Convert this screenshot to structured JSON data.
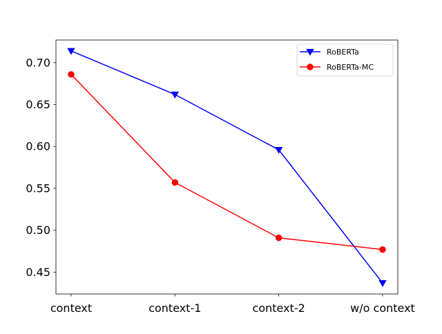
{
  "chart_data": {
    "type": "line",
    "title": "",
    "xlabel": "",
    "ylabel": "",
    "categories": [
      "context",
      "context-1",
      "context-2",
      "w/o context"
    ],
    "series": [
      {
        "name": "RoBERTa",
        "color": "#0000ff",
        "marker": "triangle-down",
        "values": [
          0.714,
          0.662,
          0.596,
          0.437
        ]
      },
      {
        "name": "RoBERTa-MC",
        "color": "#ff0000",
        "marker": "circle",
        "values": [
          0.686,
          0.557,
          0.491,
          0.477
        ]
      }
    ],
    "ylim": [
      0.424,
      0.727
    ],
    "yticks": [
      0.45,
      0.5,
      0.55,
      0.6,
      0.65,
      0.7
    ],
    "ytick_labels": [
      "0.45",
      "0.50",
      "0.55",
      "0.60",
      "0.65",
      "0.70"
    ],
    "grid": false,
    "legend_position": "upper right"
  }
}
